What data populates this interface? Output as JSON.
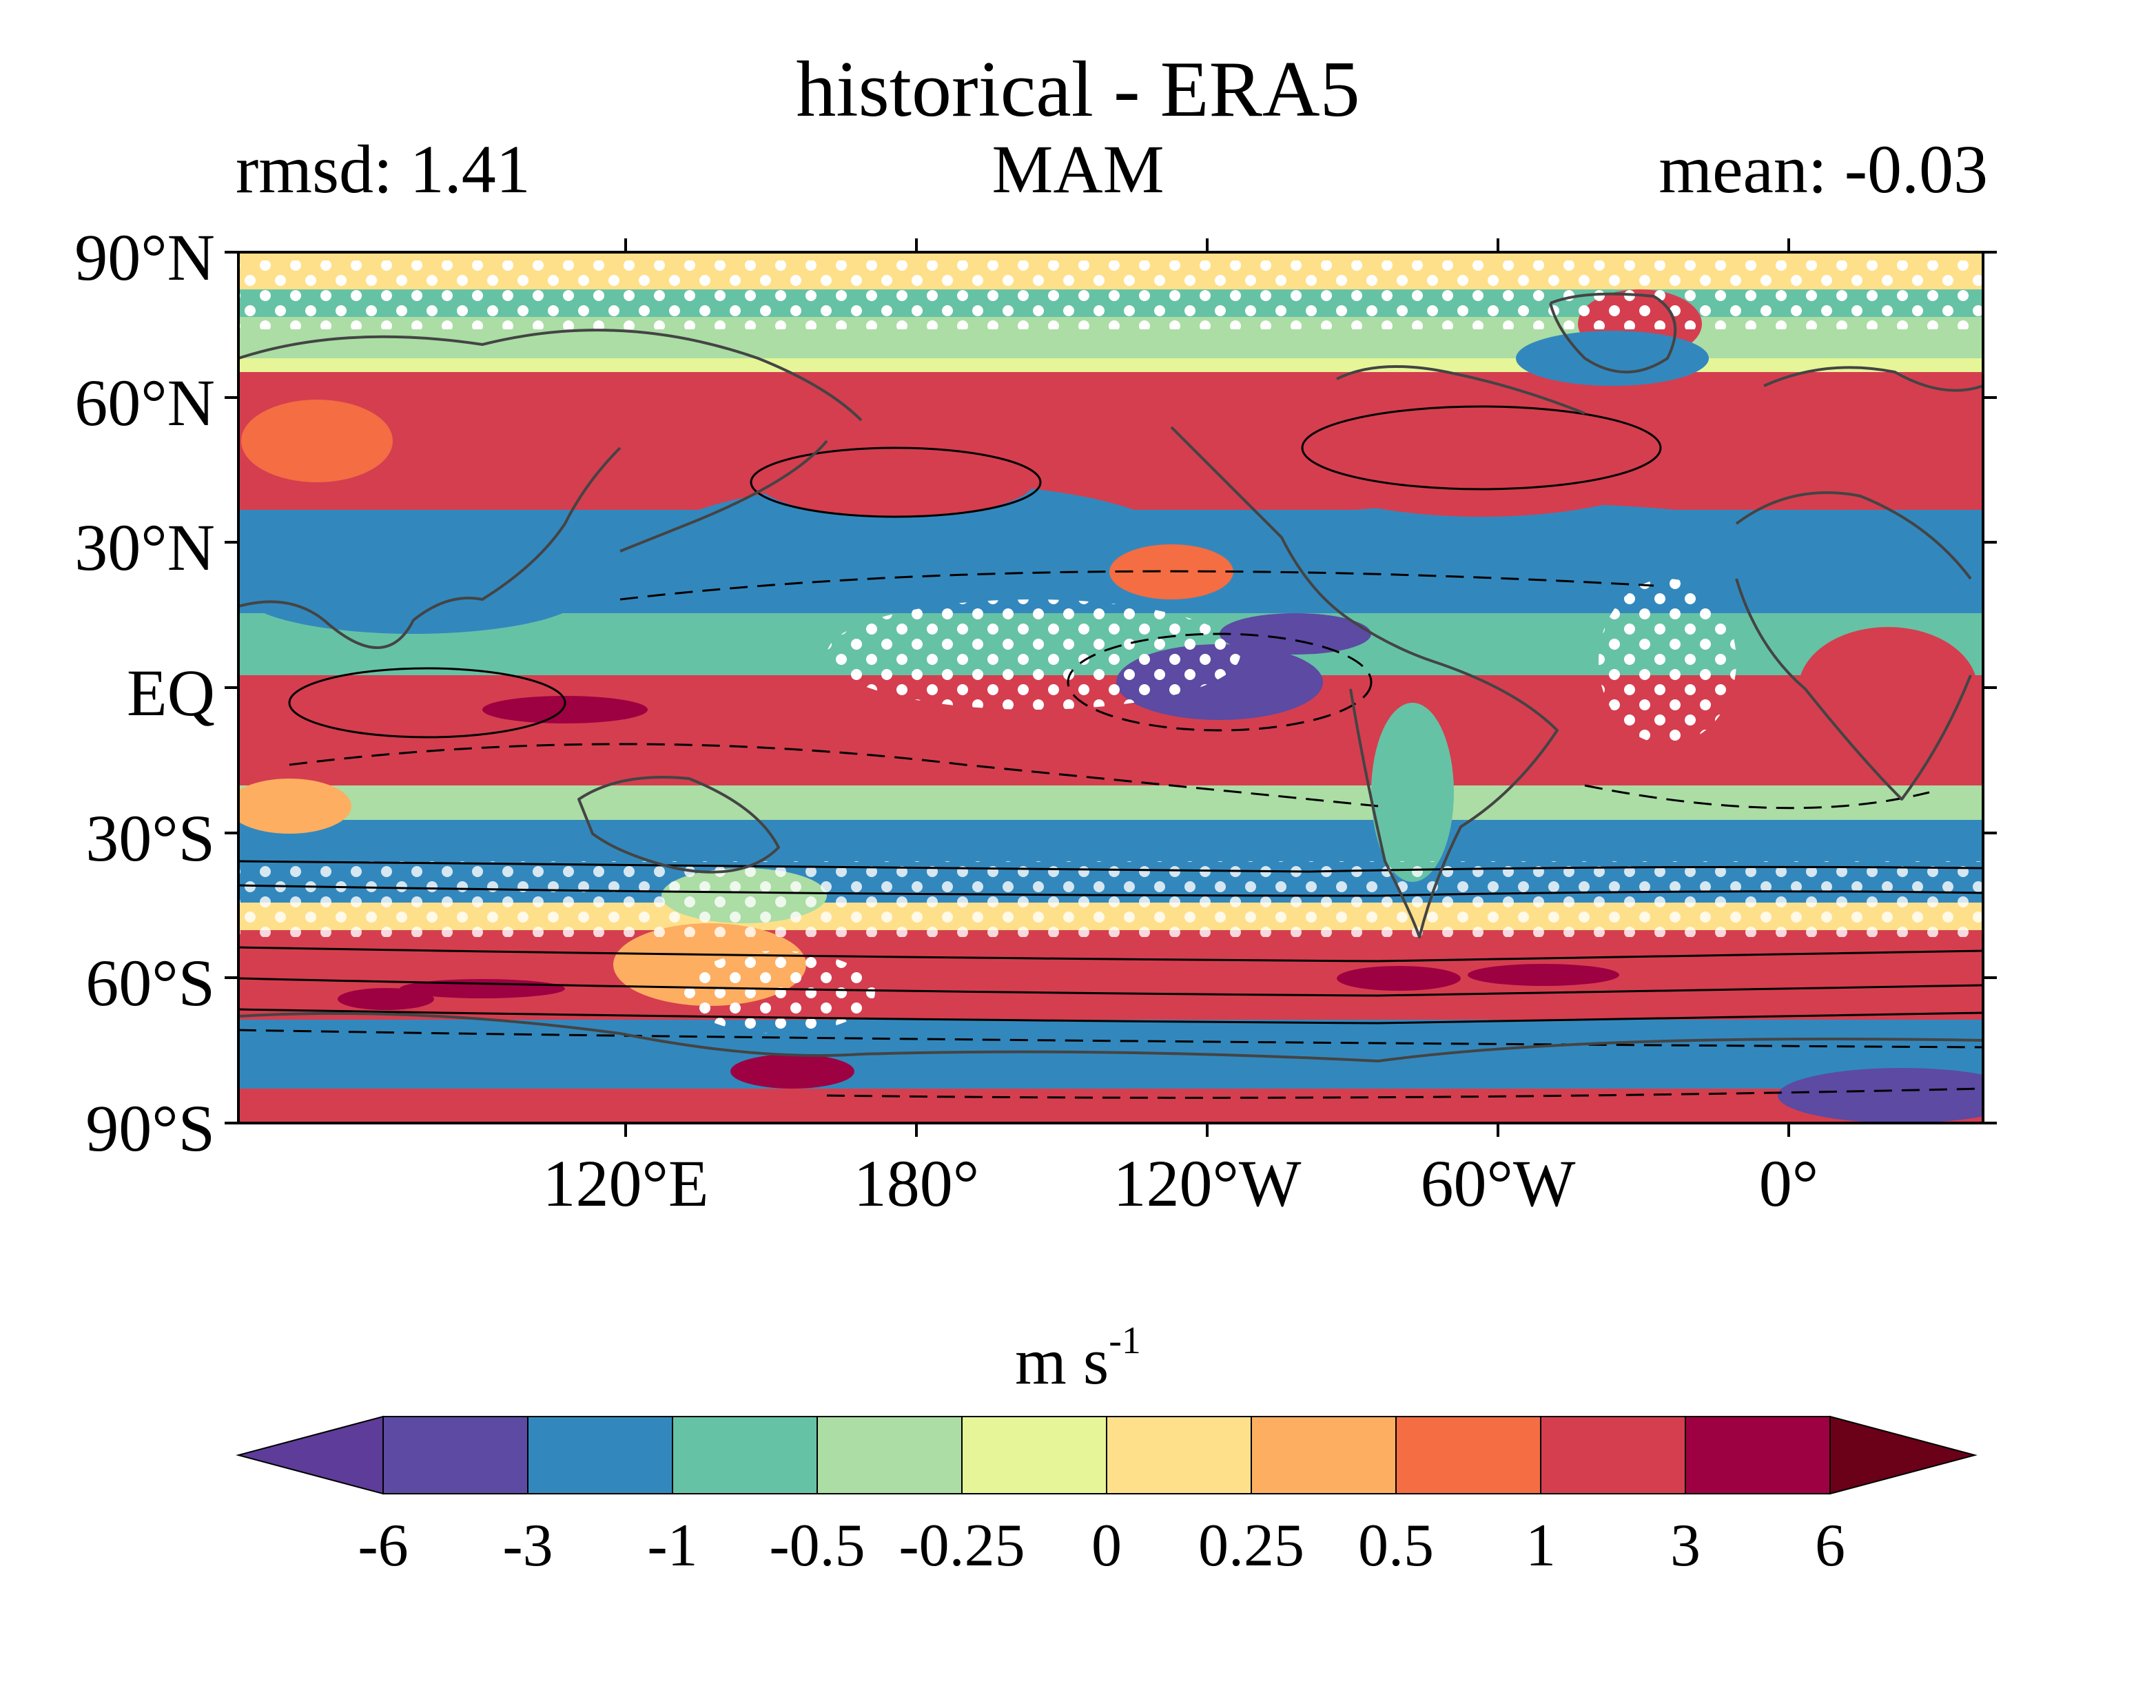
{
  "title": "historical - ERA5",
  "left_annotation": "rmsd: 1.41",
  "center_annotation": "MAM",
  "right_annotation": "mean: -0.03",
  "map": {
    "projection": "equirectangular",
    "lat_range": [
      -90,
      90
    ],
    "lon_range": [
      40,
      400
    ],
    "y_ticks": [
      "90°N",
      "60°N",
      "30°N",
      "EQ",
      "30°S",
      "60°S",
      "90°S"
    ],
    "x_ticks": [
      "120°E",
      "180°",
      "120°W",
      "60°W",
      "0°"
    ],
    "stippling": "white dots",
    "contours": "black solid (positive) and dashed (negative) lines",
    "coastlines": "dark grey"
  },
  "colorbar": {
    "units_label": "m s",
    "units_exponent": "-1",
    "levels": [
      "-6",
      "-3",
      "-1",
      "-0.5",
      "-0.25",
      "0",
      "0.25",
      "0.5",
      "1",
      "3",
      "6"
    ],
    "colors": [
      "#5e3c99",
      "#5c4aa3",
      "#3288bd",
      "#66c2a5",
      "#abdda4",
      "#e6f598",
      "#fee08b",
      "#fdae61",
      "#f46d43",
      "#d53e4f",
      "#9e0142",
      "#6b0019"
    ],
    "extend": "both"
  }
}
